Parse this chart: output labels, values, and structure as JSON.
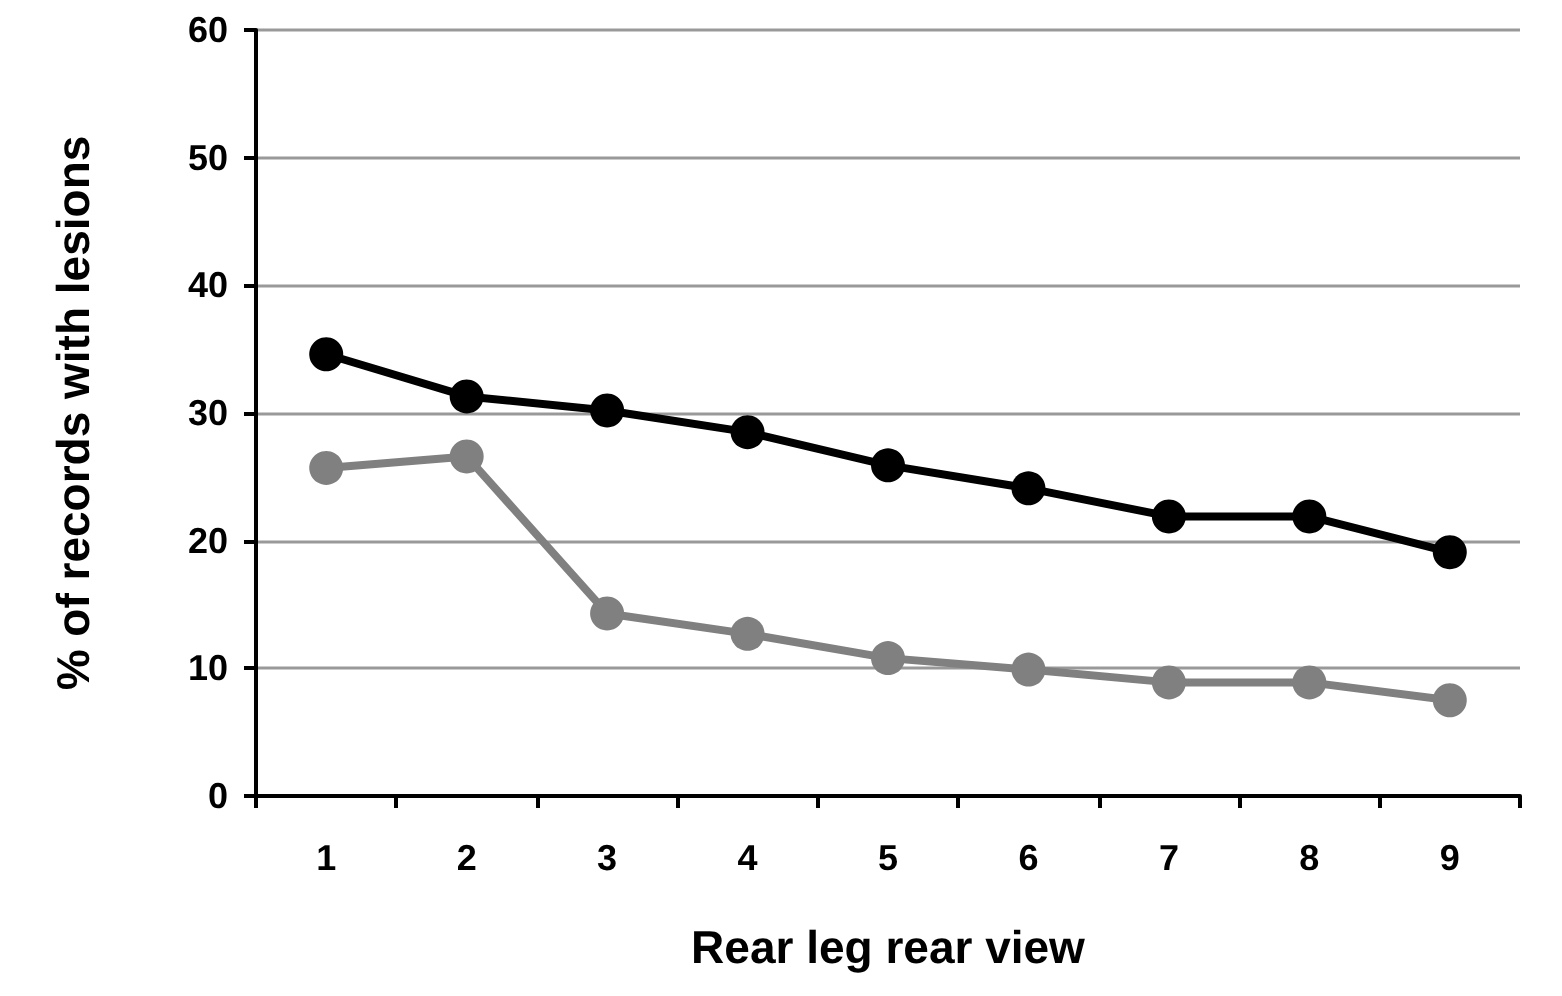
{
  "chart_data": {
    "type": "line",
    "xlabel": "Rear leg rear view",
    "ylabel": "% of records with lesions",
    "categories": [
      "1",
      "2",
      "3",
      "4",
      "5",
      "6",
      "7",
      "8",
      "9"
    ],
    "series": [
      {
        "color": "#000000",
        "values": [
          34.6,
          31.3,
          30.2,
          28.5,
          25.9,
          24.1,
          21.9,
          21.9,
          19.1
        ]
      },
      {
        "color": "#808080",
        "values": [
          25.7,
          26.6,
          14.3,
          12.7,
          10.8,
          9.9,
          8.9,
          8.9,
          7.5
        ]
      }
    ],
    "ylim": [
      0,
      60
    ],
    "yticks": [
      0,
      10,
      20,
      30,
      40,
      50,
      60
    ],
    "grid": "y",
    "marker": "circle",
    "line_style": "solid"
  }
}
